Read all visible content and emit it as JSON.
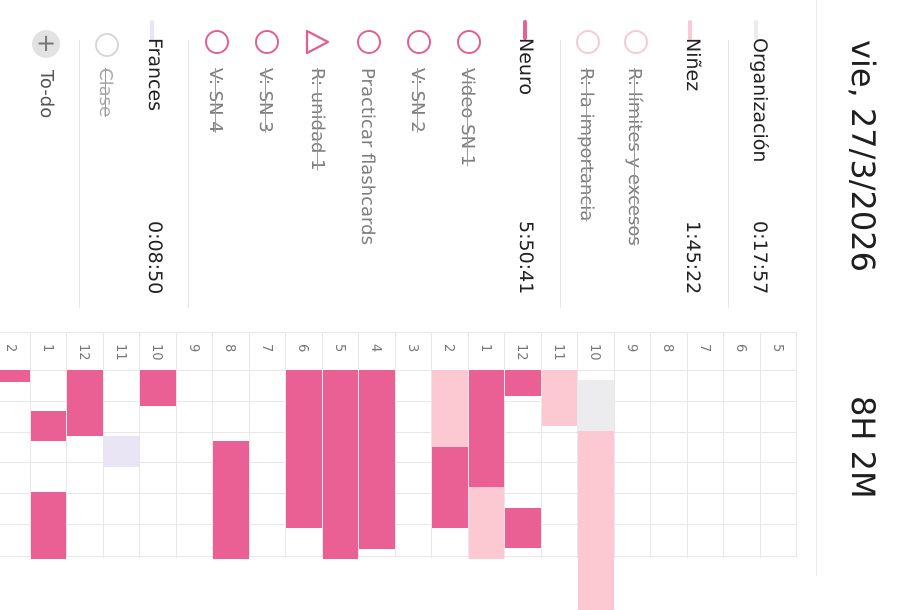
{
  "header": {
    "date": "vie, 27/3/2026",
    "total": "8H 2M"
  },
  "colors": {
    "neuro": "#ea6095",
    "ninez": "#fcc9d2",
    "organizacion": "#ececef",
    "frances": "#e9e5f5",
    "grid": "#e8e8e8"
  },
  "categories": [
    {
      "name": "Organización",
      "time": "0:17:57",
      "color": "#ececef",
      "tasks": []
    },
    {
      "name": "Niñez",
      "time": "1:45:22",
      "color": "#fcc9d2",
      "tasks": [
        {
          "label": "R: límites y excesos",
          "done": true,
          "shape": "circle"
        },
        {
          "label": "R: la importancia",
          "done": true,
          "shape": "circle"
        }
      ]
    },
    {
      "name": "Neuro",
      "time": "5:50:41",
      "color": "#ea6095",
      "tasks": [
        {
          "label": "Video SN 1",
          "done": true,
          "shape": "circle"
        },
        {
          "label": "V: SN 2",
          "done": true,
          "shape": "circle"
        },
        {
          "label": "Practicar flashcards",
          "done": false,
          "shape": "circle"
        },
        {
          "label": "R: unidad 1",
          "done": true,
          "shape": "triangle"
        },
        {
          "label": "V: SN 3",
          "done": true,
          "shape": "circle"
        },
        {
          "label": "V: SN 4",
          "done": true,
          "shape": "circle"
        }
      ]
    },
    {
      "name": "Frances",
      "time": "0:08:50",
      "color": "#e9e5f5",
      "tasks": [
        {
          "label": "Clase",
          "done": true,
          "shape": "circle"
        }
      ]
    }
  ],
  "todo": {
    "label": "To-do",
    "add_symbol": "+"
  },
  "timeline": {
    "hours": [
      "5",
      "6",
      "7",
      "8",
      "9",
      "10",
      "11",
      "12",
      "1",
      "2",
      "3",
      "4",
      "5",
      "6",
      "7",
      "8",
      "9",
      "10",
      "11",
      "12",
      "1",
      "2"
    ],
    "activity": [
      {
        "hour_index": 5,
        "category": "organizacion",
        "from_min": 10,
        "to_min": 60
      },
      {
        "hour_index": 5,
        "category": "ninez",
        "from_min": 60,
        "to_min": 235
      },
      {
        "hour_index": 6,
        "category": "ninez",
        "from_min": 0,
        "to_min": 55
      },
      {
        "hour_index": 7,
        "category": "neuro",
        "from_min": 0,
        "to_min": 25
      },
      {
        "hour_index": 7,
        "category": "neuro",
        "from_min": 135,
        "to_min": 175
      },
      {
        "hour_index": 8,
        "category": "neuro",
        "from_min": 0,
        "to_min": 115
      },
      {
        "hour_index": 8,
        "category": "ninez",
        "from_min": 115,
        "to_min": 185
      },
      {
        "hour_index": 9,
        "category": "ninez",
        "from_min": 0,
        "to_min": 75
      },
      {
        "hour_index": 9,
        "category": "neuro",
        "from_min": 75,
        "to_min": 155
      },
      {
        "hour_index": 11,
        "category": "neuro",
        "from_min": 0,
        "to_min": 175
      },
      {
        "hour_index": 12,
        "category": "neuro",
        "from_min": 0,
        "to_min": 185
      },
      {
        "hour_index": 13,
        "category": "neuro",
        "from_min": 0,
        "to_min": 155
      },
      {
        "hour_index": 15,
        "category": "neuro",
        "from_min": 70,
        "to_min": 185
      },
      {
        "hour_index": 17,
        "category": "neuro",
        "from_min": 0,
        "to_min": 35
      },
      {
        "hour_index": 18,
        "category": "frances",
        "from_min": 65,
        "to_min": 95
      },
      {
        "hour_index": 19,
        "category": "neuro",
        "from_min": 0,
        "to_min": 65
      },
      {
        "hour_index": 20,
        "category": "neuro",
        "from_min": 40,
        "to_min": 70
      },
      {
        "hour_index": 20,
        "category": "neuro",
        "from_min": 120,
        "to_min": 185
      },
      {
        "hour_index": 21,
        "category": "neuro",
        "from_min": 0,
        "to_min": 12
      }
    ]
  }
}
